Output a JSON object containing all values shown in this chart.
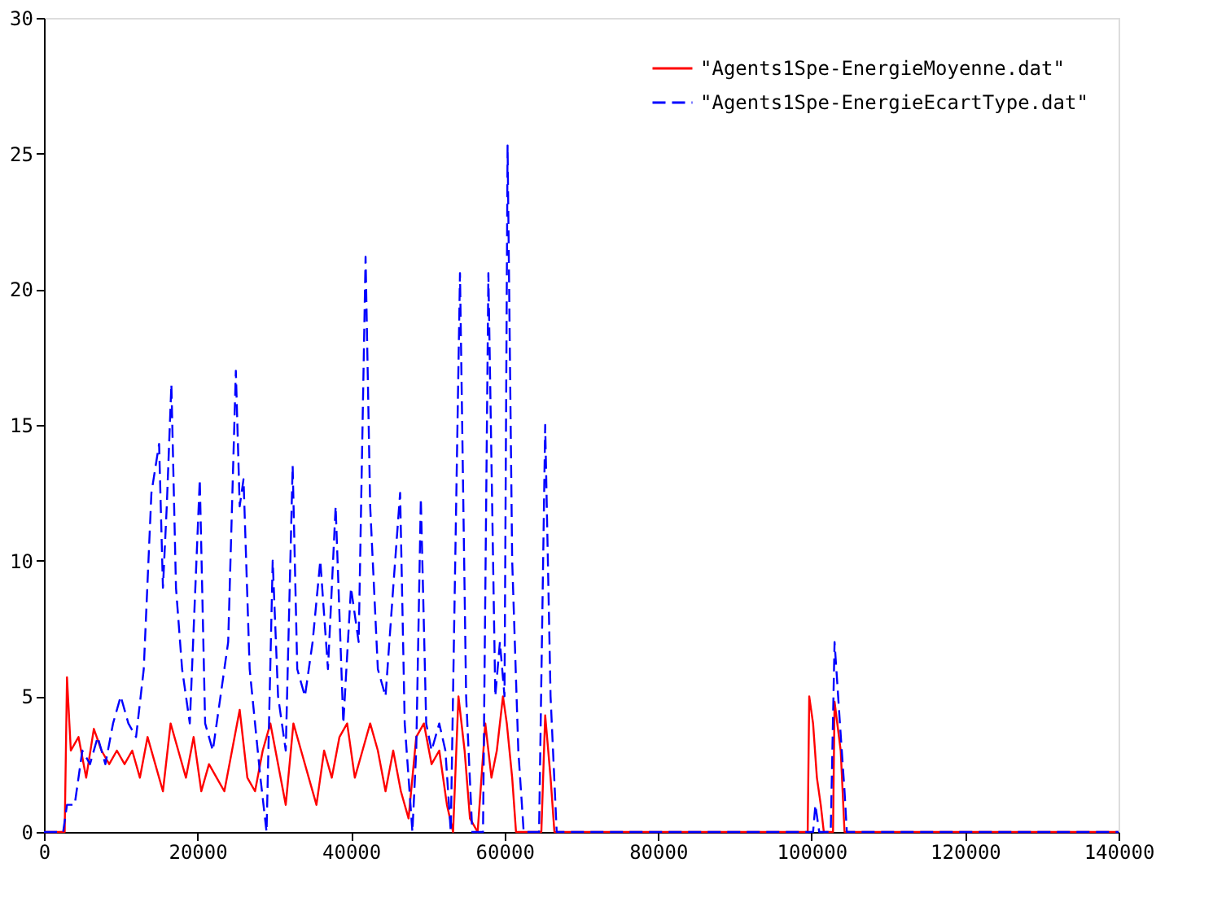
{
  "chart_data": {
    "type": "line",
    "xlim": [
      0,
      140000
    ],
    "ylim": [
      0,
      30
    ],
    "xticks": [
      0,
      20000,
      40000,
      60000,
      80000,
      100000,
      120000,
      140000
    ],
    "yticks": [
      0,
      5,
      10,
      15,
      20,
      25,
      30
    ],
    "grid": false,
    "legend": "top right",
    "series": [
      {
        "name": "\"Agents1Spe-EnergieMoyenne.dat\"",
        "color": "#ff0000",
        "line_style": "solid",
        "x": [
          0,
          2700,
          3000,
          3500,
          4500,
          5500,
          6500,
          7500,
          8500,
          9500,
          10500,
          11500,
          12500,
          13500,
          14500,
          15500,
          16500,
          17500,
          18500,
          19500,
          20500,
          21500,
          22500,
          23500,
          24500,
          25500,
          26500,
          27500,
          28500,
          29500,
          30500,
          31500,
          32500,
          33500,
          34500,
          35500,
          36500,
          37500,
          38500,
          39500,
          40500,
          41500,
          42500,
          43500,
          44500,
          45500,
          46500,
          47500,
          48500,
          49500,
          50500,
          51500,
          52500,
          53300,
          54000,
          54800,
          55500,
          56500,
          57500,
          58300,
          59000,
          59800,
          60300,
          61000,
          61500,
          64800,
          65300,
          66000,
          66500,
          99500,
          99700,
          100200,
          100700,
          101200,
          101600,
          102800,
          103000,
          103800,
          104300,
          140000
        ],
        "values": [
          0,
          0,
          5.7,
          3,
          3.5,
          2,
          3.8,
          3,
          2.5,
          3,
          2.5,
          3,
          2,
          3.5,
          2.5,
          1.5,
          4,
          3,
          2,
          3.5,
          1.5,
          2.5,
          2,
          1.5,
          3,
          4.5,
          2,
          1.5,
          3,
          4,
          2.5,
          1,
          4,
          3,
          2,
          1,
          3,
          2,
          3.5,
          4,
          2,
          3,
          4,
          3,
          1.5,
          3,
          1.5,
          0.5,
          3.5,
          4,
          2.5,
          3,
          1,
          0,
          5,
          3,
          0.5,
          0,
          4,
          2,
          3,
          5,
          4,
          2,
          0,
          0,
          4.3,
          2,
          0,
          0,
          5,
          4,
          2,
          1,
          0,
          0,
          4.8,
          3,
          0,
          0
        ]
      },
      {
        "name": "\"Agents1Spe-EnergieEcartType.dat\"",
        "color": "#0000ff",
        "line_style": "dashed",
        "x": [
          0,
          2500,
          3000,
          4000,
          5000,
          6000,
          7000,
          8000,
          9000,
          10000,
          11000,
          12000,
          13000,
          14000,
          15000,
          15500,
          16000,
          16600,
          17200,
          18000,
          19000,
          20300,
          21000,
          22000,
          23000,
          24000,
          25000,
          25500,
          26000,
          26800,
          27500,
          28200,
          29000,
          29800,
          30500,
          31500,
          32400,
          33000,
          34000,
          35000,
          36000,
          37000,
          38000,
          39000,
          40000,
          41000,
          41900,
          42500,
          43500,
          44500,
          45500,
          46400,
          47000,
          48000,
          48500,
          49100,
          49800,
          50500,
          51500,
          52300,
          53000,
          54200,
          55000,
          55800,
          57200,
          57900,
          58800,
          59400,
          60000,
          60400,
          61000,
          61800,
          62500,
          64500,
          65300,
          66000,
          66800,
          100200,
          100500,
          101000,
          102500,
          103000,
          103700,
          104300,
          104600,
          140000
        ],
        "values": [
          0,
          0,
          1,
          1,
          3,
          2.5,
          3.5,
          2.5,
          4,
          5,
          4,
          3.5,
          6,
          12.5,
          14.3,
          9,
          12,
          16.5,
          9,
          6,
          4,
          13,
          4,
          3,
          5,
          7,
          17,
          12,
          13,
          6,
          4,
          2,
          0,
          10,
          5,
          3,
          13.5,
          6,
          5,
          7,
          10,
          6,
          12,
          4,
          9,
          7,
          21.2,
          12,
          6,
          5,
          9,
          12.5,
          4,
          0,
          3,
          12.3,
          4,
          3,
          4,
          3,
          0,
          20.6,
          5,
          0,
          0,
          20.6,
          5,
          7,
          5,
          25.3,
          10,
          3,
          0,
          0,
          15,
          5,
          0,
          0,
          1,
          0,
          0,
          7,
          4,
          1.5,
          0,
          0
        ]
      }
    ]
  }
}
